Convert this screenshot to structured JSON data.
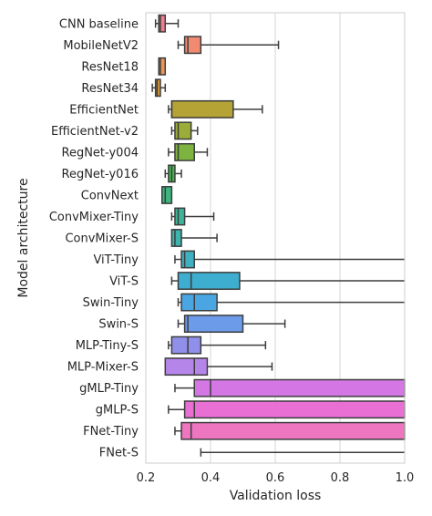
{
  "chart_data": {
    "type": "box",
    "xlabel": "Validation loss",
    "ylabel": "Model architecture",
    "xlim": [
      0.2,
      1.0
    ],
    "xticks": [
      0.2,
      0.4,
      0.6,
      0.8,
      1.0
    ],
    "xtick_labels": [
      "0.2",
      "0.4",
      "0.6",
      "0.8",
      "1.0"
    ],
    "grid": "vertical",
    "categories": [
      {
        "name": "CNN baseline",
        "color": "#f07f8d",
        "whisker_low": 0.23,
        "q1": 0.24,
        "median": 0.245,
        "q3": 0.26,
        "whisker_high": 0.3
      },
      {
        "name": "MobileNetV2",
        "color": "#f08b71",
        "whisker_low": 0.3,
        "q1": 0.32,
        "median": 0.33,
        "q3": 0.37,
        "whisker_high": 0.61
      },
      {
        "name": "ResNet18",
        "color": "#eb9559",
        "whisker_low": 0.24,
        "q1": 0.24,
        "median": 0.245,
        "q3": 0.26,
        "whisker_high": 0.26
      },
      {
        "name": "ResNet34",
        "color": "#d89b3d",
        "whisker_low": 0.22,
        "q1": 0.23,
        "median": 0.235,
        "q3": 0.245,
        "whisker_high": 0.26
      },
      {
        "name": "EfficientNet",
        "color": "#b5a335",
        "whisker_low": 0.27,
        "q1": 0.28,
        "median": 0.28,
        "q3": 0.47,
        "whisker_high": 0.56
      },
      {
        "name": "EfficientNet-v2",
        "color": "#9bac38",
        "whisker_low": 0.28,
        "q1": 0.29,
        "median": 0.3,
        "q3": 0.34,
        "whisker_high": 0.36
      },
      {
        "name": "RegNet-y004",
        "color": "#7db43f",
        "whisker_low": 0.27,
        "q1": 0.29,
        "median": 0.3,
        "q3": 0.35,
        "whisker_high": 0.39
      },
      {
        "name": "RegNet-y016",
        "color": "#45b54f",
        "whisker_low": 0.26,
        "q1": 0.27,
        "median": 0.28,
        "q3": 0.29,
        "whisker_high": 0.31
      },
      {
        "name": "ConvNext",
        "color": "#3db57d",
        "whisker_low": 0.25,
        "q1": 0.25,
        "median": 0.26,
        "q3": 0.28,
        "whisker_high": 0.28
      },
      {
        "name": "ConvMixer-Tiny",
        "color": "#3db59a",
        "whisker_low": 0.28,
        "q1": 0.29,
        "median": 0.3,
        "q3": 0.32,
        "whisker_high": 0.41
      },
      {
        "name": "ConvMixer-S",
        "color": "#3db3ad",
        "whisker_low": 0.28,
        "q1": 0.28,
        "median": 0.29,
        "q3": 0.31,
        "whisker_high": 0.42
      },
      {
        "name": "ViT-Tiny",
        "color": "#3fb0bf",
        "whisker_low": 0.29,
        "q1": 0.31,
        "median": 0.32,
        "q3": 0.35,
        "whisker_high": 1.0
      },
      {
        "name": "ViT-S",
        "color": "#3eaed0",
        "whisker_low": 0.28,
        "q1": 0.3,
        "median": 0.34,
        "q3": 0.49,
        "whisker_high": 1.0
      },
      {
        "name": "Swin-Tiny",
        "color": "#49a6e2",
        "whisker_low": 0.3,
        "q1": 0.31,
        "median": 0.35,
        "q3": 0.42,
        "whisker_high": 1.0
      },
      {
        "name": "Swin-S",
        "color": "#6c9be9",
        "whisker_low": 0.3,
        "q1": 0.32,
        "median": 0.33,
        "q3": 0.5,
        "whisker_high": 0.63
      },
      {
        "name": "MLP-Tiny-S",
        "color": "#9090ea",
        "whisker_low": 0.27,
        "q1": 0.28,
        "median": 0.33,
        "q3": 0.37,
        "whisker_high": 0.57
      },
      {
        "name": "MLP-Mixer-S",
        "color": "#b685ea",
        "whisker_low": 0.26,
        "q1": 0.26,
        "median": 0.35,
        "q3": 0.39,
        "whisker_high": 0.59
      },
      {
        "name": "gMLP-Tiny",
        "color": "#d576e5",
        "whisker_low": 0.29,
        "q1": 0.35,
        "median": 0.4,
        "q3": 1.0,
        "whisker_high": 1.0
      },
      {
        "name": "gMLP-S",
        "color": "#e96fd5",
        "whisker_low": 0.27,
        "q1": 0.32,
        "median": 0.35,
        "q3": 1.0,
        "whisker_high": 1.0
      },
      {
        "name": "FNet-Tiny",
        "color": "#ee75c0",
        "whisker_low": 0.29,
        "q1": 0.31,
        "median": 0.34,
        "q3": 1.0,
        "whisker_high": 1.0
      },
      {
        "name": "FNet-S",
        "color": "#ef78ad",
        "whisker_low": 0.37,
        "q1": null,
        "median": null,
        "q3": null,
        "whisker_high": 1.0
      }
    ]
  }
}
